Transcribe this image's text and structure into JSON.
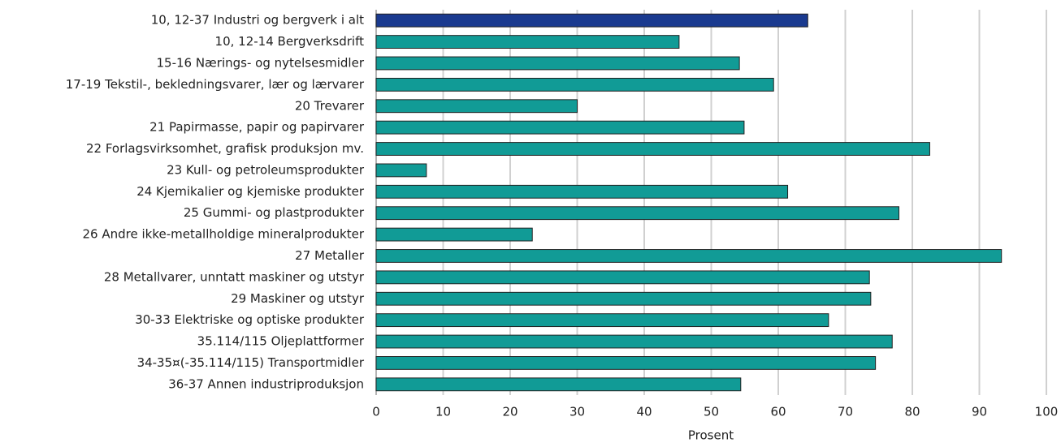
{
  "chart_data": {
    "type": "barh",
    "x_label": "Prosent",
    "categories": [
      "10, 12-37 Industri og bergverk i alt",
      "10, 12-14 Bergverksdrift",
      "15-16 Nærings- og nytelsesmidler",
      "17-19 Tekstil-, bekledningsvarer, lær og lærvarer",
      "20 Trevarer",
      "21 Papirmasse, papir og papirvarer",
      "22 Forlagsvirksomhet, grafisk produksjon mv.",
      "23 Kull- og petroleumsprodukter",
      "24 Kjemikalier og kjemiske produkter",
      "25 Gummi- og plastprodukter",
      "26 Andre ikke-metallholdige mineralprodukter",
      "27 Metaller",
      "28 Metallvarer, unntatt maskiner og utstyr",
      "29 Maskiner og utstyr",
      "30-33 Elektriske og optiske produkter",
      "35.114/115 Oljeplattformer",
      "34-35¤(-35.114/115) Transportmidler",
      "36-37 Annen industriproduksjon"
    ],
    "values": [
      64.4,
      45.2,
      54.2,
      59.3,
      30.0,
      54.9,
      82.6,
      7.5,
      61.4,
      78.0,
      23.3,
      93.3,
      73.6,
      73.8,
      67.5,
      77.0,
      74.5,
      54.4
    ],
    "colors": [
      "#1a3a8f",
      "#119b96",
      "#119b96",
      "#119b96",
      "#119b96",
      "#119b96",
      "#119b96",
      "#119b96",
      "#119b96",
      "#119b96",
      "#119b96",
      "#119b96",
      "#119b96",
      "#119b96",
      "#119b96",
      "#119b96",
      "#119b96",
      "#119b96"
    ],
    "xlim": [
      0,
      100
    ],
    "xticks": [
      0,
      10,
      20,
      30,
      40,
      50,
      60,
      70,
      80,
      90,
      100
    ],
    "grid": true
  }
}
